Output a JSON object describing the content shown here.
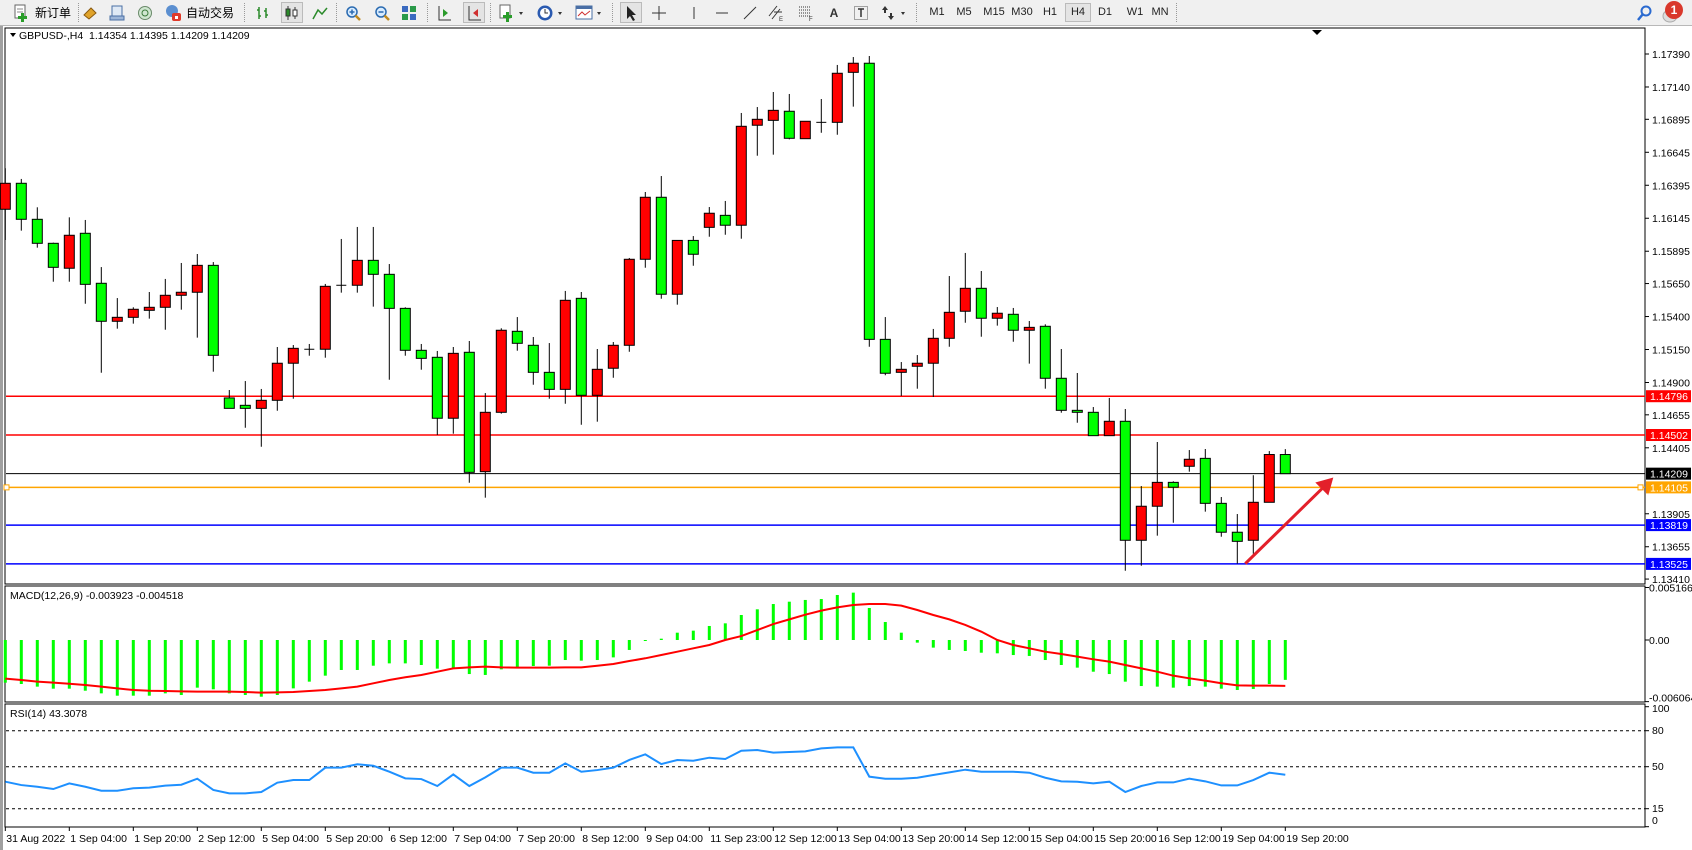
{
  "toolbar": {
    "new_order_label": "新订单",
    "auto_trading_label": "自动交易",
    "timeframes": [
      "M1",
      "M5",
      "M15",
      "M30",
      "H1",
      "H4",
      "D1",
      "W1",
      "MN"
    ],
    "active_timeframe": "H4",
    "notification_count": "1",
    "text_tool_label": "A"
  },
  "colors": {
    "bull_candle": "#ff0000",
    "bear_candle": "#00ff00",
    "macd_histogram": "#00ff00",
    "macd_signal": "#ff0000",
    "rsi_line": "#1e90ff",
    "resistance": "#ff0000",
    "support": "#0000ff",
    "bid_line": "#000000",
    "level_orange": "#ffa500",
    "arrow": "#e3202a"
  },
  "chart_data": [
    {
      "type": "candlestick",
      "title": "GBPUSD-,H4  1.14354 1.14395 1.14209 1.14209",
      "symbol": "GBPUSD-",
      "timeframe": "H4",
      "ylim": [
        1.1341,
        1.1739
      ],
      "y_ticks": [
        "1.17390",
        "1.17140",
        "1.16895",
        "1.16645",
        "1.16395",
        "1.16145",
        "1.15895",
        "1.15650",
        "1.15400",
        "1.15150",
        "1.14900",
        "1.14655",
        "1.14405",
        "1.13905",
        "1.13655",
        "1.13410"
      ],
      "x_ticks": [
        "31 Aug 2022",
        "1 Sep 04:00",
        "1 Sep 20:00",
        "2 Sep 12:00",
        "5 Sep 04:00",
        "5 Sep 20:00",
        "6 Sep 12:00",
        "7 Sep 04:00",
        "7 Sep 20:00",
        "8 Sep 12:00",
        "9 Sep 04:00",
        "11 Sep 23:00",
        "12 Sep 12:00",
        "13 Sep 04:00",
        "13 Sep 20:00",
        "14 Sep 12:00",
        "15 Sep 04:00",
        "15 Sep 20:00",
        "16 Sep 12:00",
        "19 Sep 04:00",
        "19 Sep 20:00"
      ],
      "x_tick_every_bars": 4,
      "horizontal_lines": [
        {
          "price": "1.14796",
          "color": "#ff0000",
          "label_text_color": "#ffffff"
        },
        {
          "price": "1.14502",
          "color": "#ff0000",
          "label_text_color": "#ffffff"
        },
        {
          "price": "1.14209",
          "color": "#000000",
          "label_text_color": "#ffffff"
        },
        {
          "price": "1.14105",
          "color": "#ffa500",
          "label_text_color": "#ffffff"
        },
        {
          "price": "1.13819",
          "color": "#0000ff",
          "label_text_color": "#ffffff"
        },
        {
          "price": "1.13525",
          "color": "#0000ff",
          "label_text_color": "#ffffff"
        }
      ],
      "arrow": {
        "from": {
          "bar": 77.5,
          "price": 1.13527
        },
        "to": {
          "bar": 83,
          "price": 1.1418
        },
        "direction": "up-right"
      },
      "ohlc": [
        [
          1.16213,
          1.16524,
          1.1598,
          1.1641
        ],
        [
          1.1641,
          1.16443,
          1.16051,
          1.16137
        ],
        [
          1.16137,
          1.16228,
          1.15922,
          1.15955
        ],
        [
          1.15955,
          1.1596,
          1.15664,
          1.15773
        ],
        [
          1.15766,
          1.16152,
          1.15664,
          1.16016
        ],
        [
          1.16031,
          1.16132,
          1.15497,
          1.15644
        ],
        [
          1.15652,
          1.15775,
          1.14974,
          1.15364
        ],
        [
          1.15364,
          1.1554,
          1.15308,
          1.15394
        ],
        [
          1.15394,
          1.1547,
          1.15346,
          1.15455
        ],
        [
          1.15447,
          1.15586,
          1.15384,
          1.1547
        ],
        [
          1.1547,
          1.15685,
          1.153,
          1.15561
        ],
        [
          1.15561,
          1.15806,
          1.15452,
          1.15584
        ],
        [
          1.15584,
          1.15874,
          1.1524,
          1.15788
        ],
        [
          1.15788,
          1.15813,
          1.14982,
          1.15106
        ],
        [
          1.14783,
          1.14843,
          1.14704,
          1.14704
        ],
        [
          1.14727,
          1.14911,
          1.14557,
          1.14704
        ],
        [
          1.14704,
          1.14851,
          1.14413,
          1.14765
        ],
        [
          1.14765,
          1.15169,
          1.14686,
          1.15046
        ],
        [
          1.15046,
          1.15184,
          1.14777,
          1.15159
        ],
        [
          1.15152,
          1.15192,
          1.15103,
          1.1515
        ],
        [
          1.15152,
          1.15647,
          1.15088,
          1.15629
        ],
        [
          1.15637,
          1.15988,
          1.15581,
          1.15635
        ],
        [
          1.15637,
          1.16079,
          1.15581,
          1.15826
        ],
        [
          1.15826,
          1.16079,
          1.15475,
          1.1572
        ],
        [
          1.1572,
          1.15798,
          1.14921,
          1.15462
        ],
        [
          1.15462,
          1.1547,
          1.15103,
          1.15144
        ],
        [
          1.15144,
          1.15192,
          1.14997,
          1.15083
        ],
        [
          1.15091,
          1.15139,
          1.14502,
          1.14629
        ],
        [
          1.14629,
          1.15169,
          1.14512,
          1.15121
        ],
        [
          1.15129,
          1.15215,
          1.1414,
          1.14219
        ],
        [
          1.14224,
          1.1482,
          1.14027,
          1.14674
        ],
        [
          1.14674,
          1.15311,
          1.14664,
          1.15296
        ],
        [
          1.15288,
          1.15396,
          1.15141,
          1.15197
        ],
        [
          1.15182,
          1.15245,
          1.14883,
          1.14977
        ],
        [
          1.14977,
          1.15199,
          1.14777,
          1.14848
        ],
        [
          1.14848,
          1.15594,
          1.14739,
          1.15523
        ],
        [
          1.15538,
          1.15586,
          1.1458,
          1.14803
        ],
        [
          1.14803,
          1.15154,
          1.14603,
          1.15
        ],
        [
          1.15008,
          1.15207,
          1.14936,
          1.15182
        ],
        [
          1.15182,
          1.15844,
          1.15133,
          1.15834
        ],
        [
          1.15834,
          1.16344,
          1.1577,
          1.16304
        ],
        [
          1.16304,
          1.16465,
          1.15535,
          1.15569
        ],
        [
          1.15569,
          1.1598,
          1.1549,
          1.15977
        ],
        [
          1.15977,
          1.1601,
          1.15785,
          1.15872
        ],
        [
          1.16076,
          1.1623,
          1.16005,
          1.16183
        ],
        [
          1.16167,
          1.16276,
          1.1602,
          1.16092
        ],
        [
          1.16092,
          1.16943,
          1.1599,
          1.16842
        ],
        [
          1.1685,
          1.16988,
          1.16619,
          1.16895
        ],
        [
          1.16887,
          1.17102,
          1.16627,
          1.16963
        ],
        [
          1.16956,
          1.17087,
          1.16743,
          1.16751
        ],
        [
          1.16748,
          1.1688,
          1.16748,
          1.1688
        ],
        [
          1.16872,
          1.17049,
          1.16793,
          1.1687
        ],
        [
          1.16872,
          1.17307,
          1.16778,
          1.17244
        ],
        [
          1.17251,
          1.17367,
          1.16991,
          1.1732
        ],
        [
          1.1732,
          1.17375,
          1.15171,
          1.15227
        ],
        [
          1.15227,
          1.15396,
          1.14955,
          1.1497
        ],
        [
          1.14977,
          1.15055,
          1.14798,
          1.15
        ],
        [
          1.15023,
          1.15108,
          1.14853,
          1.15046
        ],
        [
          1.15046,
          1.15306,
          1.1479,
          1.15235
        ],
        [
          1.15235,
          1.15707,
          1.15171,
          1.15432
        ],
        [
          1.1544,
          1.15882,
          1.15353,
          1.15614
        ],
        [
          1.15614,
          1.15745,
          1.15247,
          1.15387
        ],
        [
          1.15387,
          1.15472,
          1.15331,
          1.15425
        ],
        [
          1.15417,
          1.15465,
          1.15209,
          1.15296
        ],
        [
          1.15296,
          1.15366,
          1.15043,
          1.15318
        ],
        [
          1.15326,
          1.15341,
          1.14853,
          1.14932
        ],
        [
          1.14932,
          1.15154,
          1.14671,
          1.14689
        ],
        [
          1.14689,
          1.14972,
          1.14595,
          1.14674
        ],
        [
          1.14674,
          1.14714,
          1.14497,
          1.14497
        ],
        [
          1.14497,
          1.14783,
          1.14497,
          1.14606
        ],
        [
          1.14606,
          1.14699,
          1.13473,
          1.13704
        ],
        [
          1.13704,
          1.14115,
          1.13511,
          1.13962
        ],
        [
          1.13962,
          1.14449,
          1.13739,
          1.14143
        ],
        [
          1.14143,
          1.14151,
          1.13837,
          1.14106
        ],
        [
          1.14265,
          1.14388,
          1.14224,
          1.14318
        ],
        [
          1.14325,
          1.14396,
          1.13921,
          1.13984
        ],
        [
          1.13984,
          1.14032,
          1.13731,
          1.13765
        ],
        [
          1.13765,
          1.13903,
          1.13527,
          1.13696
        ],
        [
          1.13704,
          1.14197,
          1.13602,
          1.13992
        ],
        [
          1.13992,
          1.1438,
          1.13992,
          1.14354
        ],
        [
          1.14354,
          1.14395,
          1.14209,
          1.14209
        ]
      ]
    },
    {
      "type": "bar",
      "title": "MACD(12,26,9) -0.003923 -0.004518",
      "ylim": [
        -0.006064,
        0.005166
      ],
      "y_ticks": [
        "0.005166",
        "0.00",
        "-0.006064"
      ],
      "histogram": [
        -0.0042,
        -0.00433,
        -0.00459,
        -0.00479,
        -0.00479,
        -0.00499,
        -0.00525,
        -0.00548,
        -0.00548,
        -0.00548,
        -0.00525,
        -0.00541,
        -0.00469,
        -0.00485,
        -0.00525,
        -0.00541,
        -0.00558,
        -0.00541,
        -0.00476,
        -0.0041,
        -0.00351,
        -0.00295,
        -0.00295,
        -0.00253,
        -0.0023,
        -0.0023,
        -0.00246,
        -0.00282,
        -0.00282,
        -0.00335,
        -0.00344,
        -0.00289,
        -0.00269,
        -0.00256,
        -0.00253,
        -0.00197,
        -0.00203,
        -0.00197,
        -0.00171,
        -0.00098,
        -7e-05,
        0.00013,
        0.00072,
        0.00092,
        0.00138,
        0.00164,
        0.00246,
        0.00302,
        0.00354,
        0.00377,
        0.00394,
        0.00403,
        0.00443,
        0.00466,
        0.00315,
        0.00177,
        0.00072,
        -0.00026,
        -0.00075,
        -0.00098,
        -0.00108,
        -0.00125,
        -0.00131,
        -0.00148,
        -0.00157,
        -0.00197,
        -0.00246,
        -0.00272,
        -0.00312,
        -0.00335,
        -0.0041,
        -0.00453,
        -0.00459,
        -0.00469,
        -0.00453,
        -0.00459,
        -0.00479,
        -0.00492,
        -0.00482,
        -0.00433,
        -0.003923
      ],
      "signal": [
        -0.0038,
        -0.00394,
        -0.0041,
        -0.0042,
        -0.0043,
        -0.00443,
        -0.00459,
        -0.00476,
        -0.00492,
        -0.00499,
        -0.00502,
        -0.00505,
        -0.00508,
        -0.00508,
        -0.00508,
        -0.00512,
        -0.00518,
        -0.00515,
        -0.00512,
        -0.00502,
        -0.00492,
        -0.00476,
        -0.00459,
        -0.00426,
        -0.00394,
        -0.00367,
        -0.00344,
        -0.00312,
        -0.00279,
        -0.00269,
        -0.00262,
        -0.00269,
        -0.00272,
        -0.00272,
        -0.00272,
        -0.00269,
        -0.00269,
        -0.00253,
        -0.00236,
        -0.00207,
        -0.0018,
        -0.00148,
        -0.00115,
        -0.00082,
        -0.00049,
        0.0,
        0.00039,
        0.00098,
        0.00157,
        0.00203,
        0.00249,
        0.00289,
        0.00321,
        0.00344,
        0.00354,
        0.00354,
        0.00338,
        0.00295,
        0.00246,
        0.00203,
        0.00148,
        0.00082,
        0.0,
        -0.00049,
        -0.00082,
        -0.00115,
        -0.00138,
        -0.00164,
        -0.0019,
        -0.00213,
        -0.00246,
        -0.00279,
        -0.00312,
        -0.00351,
        -0.00377,
        -0.004,
        -0.00426,
        -0.00446,
        -0.00449,
        -0.00449,
        -0.004518
      ]
    },
    {
      "type": "line",
      "title": "RSI(14) 43.3078",
      "ylim": [
        0,
        100
      ],
      "y_ticks": [
        "100",
        "80",
        "50",
        "15",
        "0"
      ],
      "levels": [
        80,
        50,
        15
      ],
      "values": [
        37.5,
        34.7,
        33.3,
        31.4,
        36.1,
        33.3,
        30.0,
        30.0,
        32.0,
        32.6,
        34.2,
        35.0,
        40.0,
        30.6,
        27.8,
        27.8,
        28.9,
        36.7,
        38.9,
        38.9,
        49.2,
        49.2,
        52.0,
        50.8,
        45.8,
        40.3,
        39.7,
        33.9,
        43.6,
        33.9,
        41.1,
        49.2,
        49.2,
        45.0,
        45.0,
        52.8,
        45.8,
        47.2,
        49.2,
        55.6,
        60.3,
        52.2,
        55.6,
        55.0,
        57.5,
        56.4,
        63.3,
        63.9,
        61.7,
        62.2,
        62.8,
        65.3,
        66.1,
        66.1,
        41.7,
        40.0,
        40.0,
        40.8,
        43.1,
        45.3,
        47.5,
        45.8,
        45.8,
        45.8,
        45.0,
        40.8,
        37.8,
        37.5,
        36.1,
        37.5,
        28.9,
        33.9,
        36.9,
        36.9,
        40.0,
        37.8,
        34.4,
        34.4,
        38.9,
        45.0,
        43.3078
      ]
    }
  ]
}
